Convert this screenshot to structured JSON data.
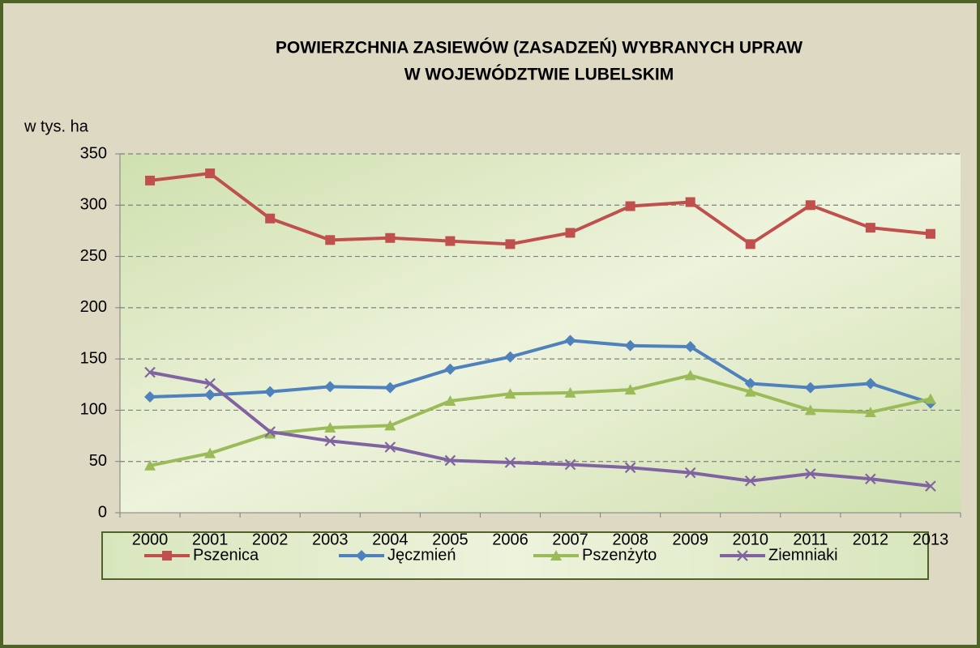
{
  "chart_data": {
    "type": "line",
    "title": [
      "POWIERZCHNIA ZASIEWÓW (ZASADZEŃ) WYBRANYCH UPRAW",
      "W WOJEWÓDZTWIE LUBELSKIM"
    ],
    "ylabel": "w tys. ha",
    "categories": [
      "2000",
      "2001",
      "2002",
      "2003",
      "2004",
      "2005",
      "2006",
      "2007",
      "2008",
      "2009",
      "2010",
      "2011",
      "2012",
      "2013"
    ],
    "ylim": [
      0,
      350
    ],
    "yticks": [
      0,
      50,
      100,
      150,
      200,
      250,
      300,
      350
    ],
    "grid": true,
    "legend": "bottom",
    "series": [
      {
        "name": "Pszenica",
        "color": "#c0504d",
        "marker": "square",
        "values": [
          324,
          331,
          287,
          266,
          268,
          265,
          262,
          273,
          299,
          303,
          262,
          300,
          278,
          272
        ]
      },
      {
        "name": "Jęczmień",
        "color": "#4f81bd",
        "marker": "diamond",
        "values": [
          113,
          115,
          118,
          123,
          122,
          140,
          152,
          168,
          163,
          162,
          126,
          122,
          126,
          107
        ]
      },
      {
        "name": "Pszenżyto",
        "color": "#9bbb59",
        "marker": "triangle",
        "values": [
          46,
          58,
          77,
          83,
          85,
          109,
          116,
          117,
          120,
          134,
          118,
          100,
          98,
          111
        ]
      },
      {
        "name": "Ziemniaki",
        "color": "#8064a2",
        "marker": "x",
        "values": [
          137,
          126,
          79,
          70,
          64,
          51,
          49,
          47,
          44,
          39,
          31,
          38,
          33,
          26
        ]
      }
    ]
  }
}
